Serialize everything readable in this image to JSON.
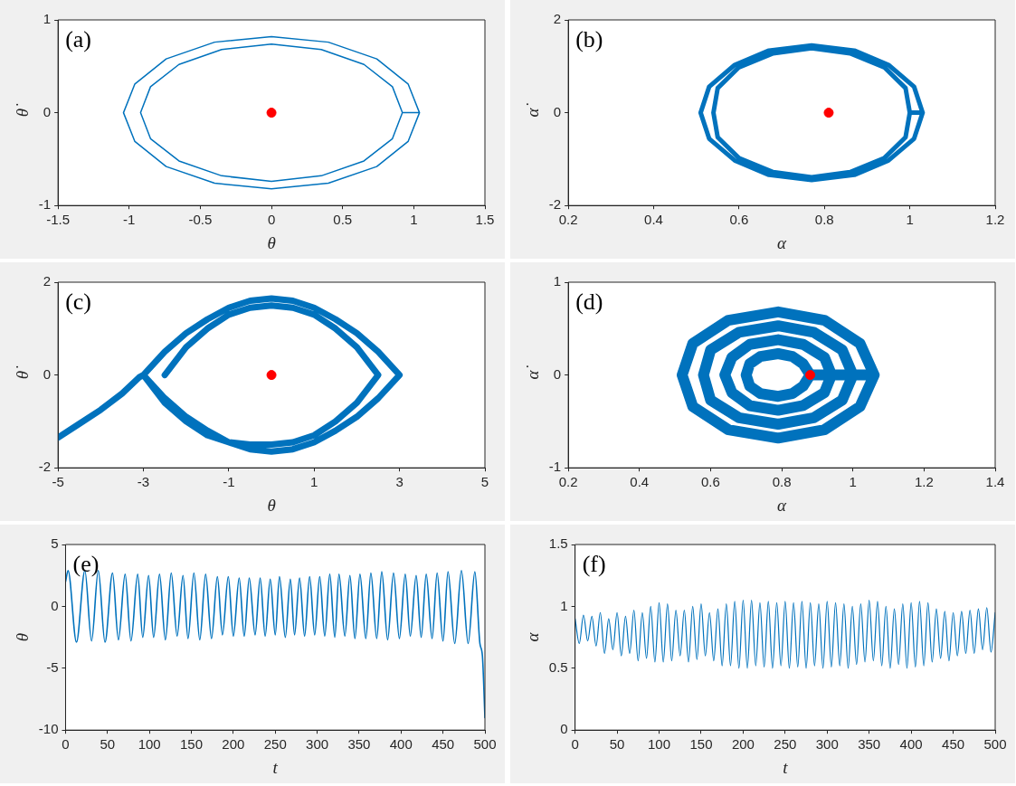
{
  "chart_data": [
    {
      "type": "line",
      "xlabel": "θ",
      "ylabel": "θ̇",
      "annotations": [
        "(a)"
      ],
      "xlim": [
        -1.5,
        1.5
      ],
      "ylim": [
        -1,
        1
      ],
      "xticks": [
        -1.5,
        -1,
        -0.5,
        0,
        0.5,
        1,
        1.5
      ],
      "yticks": [
        -1,
        0,
        1
      ],
      "series": [
        {
          "type": "line",
          "color": "#0072bd",
          "x": [
            1.04,
            0.96,
            0.74,
            0.4,
            0,
            -0.4,
            -0.74,
            -0.96,
            -1.04,
            -0.96,
            -0.74,
            -0.4,
            0,
            0.4,
            0.74,
            0.96,
            1.04,
            0.92,
            0.85,
            0.65,
            0.35,
            0,
            -0.35,
            -0.65,
            -0.85,
            -0.92,
            -0.85,
            -0.65,
            -0.35,
            0,
            0.35,
            0.65,
            0.85,
            0.92
          ],
          "values": [
            0,
            0.31,
            0.58,
            0.76,
            0.82,
            0.76,
            0.58,
            0.31,
            0,
            -0.31,
            -0.58,
            -0.76,
            -0.82,
            -0.76,
            -0.58,
            -0.31,
            0,
            0,
            0.28,
            0.52,
            0.68,
            0.74,
            0.68,
            0.52,
            0.28,
            0,
            -0.28,
            -0.52,
            -0.68,
            -0.74,
            -0.68,
            -0.52,
            -0.28,
            0
          ]
        },
        {
          "type": "scatter",
          "color": "#ff0000",
          "marker": "circle",
          "x": [
            0
          ],
          "values": [
            0
          ]
        }
      ]
    },
    {
      "type": "line",
      "xlabel": "α",
      "ylabel": "α̇",
      "annotations": [
        "(b)"
      ],
      "xlim": [
        0.2,
        1.2
      ],
      "ylim": [
        -2,
        2
      ],
      "xticks": [
        0.2,
        0.4,
        0.6,
        0.8,
        1,
        1.2
      ],
      "yticks": [
        -2,
        0,
        2
      ],
      "series": [
        {
          "type": "line",
          "color": "#0072bd",
          "x": [
            1.03,
            1.01,
            0.95,
            0.87,
            0.77,
            0.67,
            0.59,
            0.53,
            0.51,
            0.53,
            0.59,
            0.67,
            0.77,
            0.87,
            0.95,
            1.01,
            1.03,
            1.0,
            0.99,
            0.94,
            0.86,
            0.77,
            0.68,
            0.6,
            0.55,
            0.54,
            0.55,
            0.6,
            0.68,
            0.77,
            0.86,
            0.94,
            0.99,
            1.0
          ],
          "values": [
            0,
            0.56,
            1.03,
            1.34,
            1.45,
            1.34,
            1.03,
            0.56,
            0,
            -0.56,
            -1.03,
            -1.34,
            -1.45,
            -1.34,
            -1.03,
            -0.56,
            0,
            0,
            0.53,
            0.98,
            1.28,
            1.39,
            1.28,
            0.98,
            0.53,
            0,
            -0.53,
            -0.98,
            -1.28,
            -1.39,
            -1.28,
            -0.98,
            -0.53,
            0
          ]
        },
        {
          "type": "scatter",
          "color": "#ff0000",
          "marker": "circle",
          "x": [
            0.81
          ],
          "values": [
            0
          ]
        }
      ]
    },
    {
      "type": "line",
      "xlabel": "θ",
      "ylabel": "θ̇",
      "annotations": [
        "(c)"
      ],
      "xlim": [
        -5,
        5
      ],
      "ylim": [
        -2,
        2
      ],
      "xticks": [
        -5,
        -3,
        -1,
        1,
        3,
        5
      ],
      "yticks": [
        -2,
        0,
        2
      ],
      "series": [
        {
          "type": "line",
          "color": "#0072bd",
          "x": [
            -5,
            -4.5,
            -4,
            -3.5,
            -3.1,
            -3,
            -2.5,
            -2,
            -1.5,
            -1,
            -0.5,
            0,
            0.5,
            1,
            1.5,
            2,
            2.5,
            3,
            2.5,
            2,
            1.5,
            1,
            0.5,
            0,
            -0.5,
            -1,
            -1.5,
            -2,
            -2.5,
            -3,
            -2.5,
            -2,
            -1.5,
            -1,
            -0.5,
            0,
            0.5,
            1,
            1.5,
            2,
            2.5,
            2,
            1.5,
            1,
            0.5,
            0,
            -0.5,
            -1,
            -1.5,
            -2,
            -2.5
          ],
          "values": [
            -1.35,
            -1.05,
            -0.75,
            -0.4,
            -0.05,
            0,
            -0.5,
            -0.9,
            -1.2,
            -1.45,
            -1.6,
            -1.65,
            -1.6,
            -1.45,
            -1.2,
            -0.9,
            -0.5,
            0,
            0.5,
            0.9,
            1.2,
            1.45,
            1.6,
            1.65,
            1.6,
            1.45,
            1.2,
            0.9,
            0.5,
            0,
            -0.6,
            -1.0,
            -1.3,
            -1.45,
            -1.5,
            -1.5,
            -1.45,
            -1.3,
            -1.0,
            -0.6,
            0,
            0.6,
            1.0,
            1.3,
            1.45,
            1.5,
            1.45,
            1.3,
            1.0,
            0.6,
            0
          ]
        },
        {
          "type": "scatter",
          "color": "#ff0000",
          "marker": "circle",
          "x": [
            0
          ],
          "values": [
            0
          ]
        }
      ]
    },
    {
      "type": "line",
      "xlabel": "α",
      "ylabel": "α̇",
      "annotations": [
        "(d)"
      ],
      "xlim": [
        0.2,
        1.4
      ],
      "ylim": [
        -1,
        1
      ],
      "xticks": [
        0.2,
        0.4,
        0.6,
        0.8,
        1,
        1.2,
        1.4
      ],
      "yticks": [
        -1,
        0,
        1
      ],
      "series": [
        {
          "type": "line",
          "color": "#0072bd",
          "x": [
            1.06,
            1.02,
            0.92,
            0.79,
            0.65,
            0.55,
            0.52,
            0.55,
            0.65,
            0.79,
            0.92,
            1.02,
            1.06,
            1.0,
            0.97,
            0.89,
            0.79,
            0.68,
            0.6,
            0.58,
            0.6,
            0.68,
            0.79,
            0.89,
            0.97,
            1.0,
            0.94,
            0.92,
            0.86,
            0.79,
            0.71,
            0.66,
            0.64,
            0.66,
            0.71,
            0.79,
            0.86,
            0.92,
            0.94,
            0.88,
            0.86,
            0.83,
            0.79,
            0.74,
            0.71,
            0.7,
            0.71,
            0.74,
            0.79,
            0.83,
            0.86,
            0.88
          ],
          "values": [
            0,
            0.34,
            0.59,
            0.68,
            0.59,
            0.34,
            0,
            -0.34,
            -0.59,
            -0.68,
            -0.59,
            -0.34,
            0,
            0,
            0.27,
            0.46,
            0.53,
            0.46,
            0.27,
            0,
            -0.27,
            -0.46,
            -0.53,
            -0.46,
            -0.27,
            0,
            0,
            0.19,
            0.33,
            0.38,
            0.33,
            0.19,
            0,
            -0.19,
            -0.33,
            -0.38,
            -0.33,
            -0.19,
            0,
            0,
            0.12,
            0.2,
            0.23,
            0.2,
            0.12,
            0,
            -0.12,
            -0.2,
            -0.23,
            -0.2,
            -0.12,
            0
          ]
        },
        {
          "type": "scatter",
          "color": "#ff0000",
          "marker": "circle",
          "x": [
            0.88
          ],
          "values": [
            0
          ]
        }
      ]
    },
    {
      "type": "line",
      "xlabel": "t",
      "ylabel": "θ",
      "annotations": [
        "(e)"
      ],
      "xlim": [
        0,
        500
      ],
      "ylim": [
        -10,
        5
      ],
      "xticks": [
        0,
        50,
        100,
        150,
        200,
        250,
        300,
        350,
        400,
        450,
        500
      ],
      "yticks": [
        -10,
        -5,
        0,
        5
      ],
      "series": [
        {
          "type": "line",
          "color": "#0072bd",
          "x": [
            0,
            3,
            13,
            23,
            31,
            39,
            47,
            56,
            63,
            71,
            78,
            86,
            92,
            99,
            105,
            112,
            119,
            126,
            133,
            140,
            146,
            153,
            160,
            167,
            174,
            181,
            187,
            194,
            200,
            207,
            213,
            219,
            226,
            232,
            238,
            244,
            250,
            255,
            262,
            268,
            273,
            279,
            285,
            291,
            297,
            303,
            309,
            315,
            321,
            326,
            333,
            339,
            345,
            351,
            358,
            364,
            371,
            377,
            384,
            391,
            398,
            405,
            411,
            418,
            424,
            430,
            437,
            443,
            450,
            456,
            464,
            472,
            480,
            488,
            494,
            497,
            500
          ],
          "values": [
            2.0,
            2.9,
            -2.9,
            2.9,
            -2.8,
            2.9,
            -2.9,
            2.7,
            -2.7,
            2.6,
            -2.8,
            2.6,
            -2.5,
            2.5,
            -2.5,
            2.6,
            -2.7,
            2.7,
            -2.4,
            2.5,
            -2.6,
            2.7,
            -2.7,
            2.6,
            -2.6,
            2.4,
            -2.3,
            2.4,
            -2.4,
            2.3,
            -2.4,
            2.3,
            -2.3,
            2.3,
            -2.4,
            2.2,
            -2.3,
            2.4,
            -2.5,
            2.2,
            -2.3,
            2.3,
            -2.4,
            2.4,
            -2.3,
            2.4,
            -2.4,
            2.6,
            -2.5,
            2.6,
            -2.4,
            2.5,
            -2.6,
            2.6,
            -2.6,
            2.7,
            -2.6,
            2.8,
            -2.7,
            2.7,
            -2.6,
            2.6,
            -2.4,
            2.5,
            -2.5,
            2.6,
            -2.6,
            2.7,
            -2.8,
            2.8,
            -3.0,
            2.9,
            -3.0,
            2.8,
            -3.0,
            -4,
            -9
          ]
        }
      ]
    },
    {
      "type": "line",
      "xlabel": "t",
      "ylabel": "α",
      "annotations": [
        "(f)"
      ],
      "xlim": [
        0,
        500
      ],
      "ylim": [
        0,
        1.5
      ],
      "xticks": [
        0,
        50,
        100,
        150,
        200,
        250,
        300,
        350,
        400,
        450,
        500
      ],
      "yticks": [
        0,
        0.5,
        1,
        1.5
      ],
      "series": [
        {
          "type": "line",
          "color": "#0072bd",
          "x": [
            0,
            5,
            10,
            15,
            20,
            25,
            30,
            35,
            40,
            45,
            50,
            55,
            60,
            65,
            70,
            75,
            80,
            85,
            90,
            95,
            100,
            105,
            110,
            115,
            120,
            125,
            130,
            135,
            140,
            145,
            150,
            155,
            160,
            165,
            170,
            175,
            180,
            185,
            190,
            195,
            200,
            205,
            210,
            215,
            220,
            225,
            230,
            235,
            240,
            245,
            250,
            255,
            260,
            265,
            270,
            275,
            280,
            285,
            290,
            295,
            300,
            305,
            310,
            315,
            320,
            325,
            330,
            335,
            340,
            345,
            350,
            355,
            360,
            365,
            370,
            375,
            380,
            385,
            390,
            395,
            400,
            405,
            410,
            415,
            420,
            425,
            430,
            435,
            440,
            445,
            450,
            455,
            460,
            465,
            470,
            475,
            480,
            485,
            490,
            495,
            500
          ],
          "values": [
            0.9,
            0.7,
            0.93,
            0.72,
            0.92,
            0.68,
            0.95,
            0.62,
            0.9,
            0.65,
            0.95,
            0.6,
            0.92,
            0.62,
            0.97,
            0.56,
            0.95,
            0.58,
            1.0,
            0.55,
            1.03,
            0.55,
            1.02,
            0.56,
            0.97,
            0.6,
            0.97,
            0.55,
            1.0,
            0.57,
            1.02,
            0.6,
            0.95,
            0.56,
            0.98,
            0.52,
            1.02,
            0.52,
            1.04,
            0.5,
            1.05,
            0.5,
            1.05,
            0.52,
            1.03,
            0.51,
            1.04,
            0.5,
            1.03,
            0.52,
            1.04,
            0.5,
            1.03,
            0.51,
            1.04,
            0.5,
            1.03,
            0.52,
            1.02,
            0.5,
            1.04,
            0.51,
            1.03,
            0.52,
            1.02,
            0.5,
            1.0,
            0.53,
            1.02,
            0.55,
            1.05,
            0.56,
            1.04,
            0.52,
            1.0,
            0.5,
            0.98,
            0.53,
            1.02,
            0.5,
            1.03,
            0.51,
            1.04,
            0.52,
            1.03,
            0.55,
            0.98,
            0.58,
            0.96,
            0.56,
            0.95,
            0.6,
            0.96,
            0.62,
            0.97,
            0.62,
            0.98,
            0.65,
            0.99,
            0.63,
            0.95
          ]
        }
      ]
    }
  ]
}
